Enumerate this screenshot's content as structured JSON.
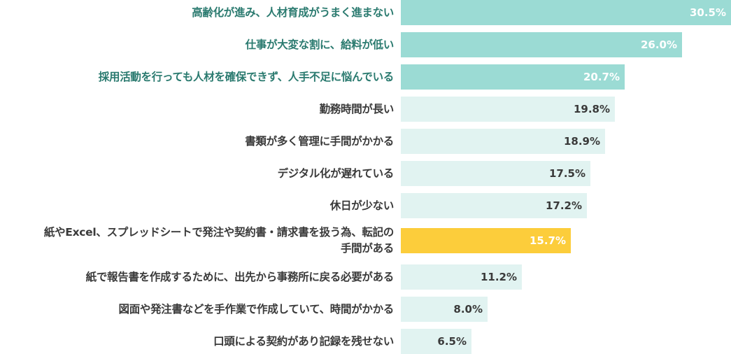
{
  "chart_data": {
    "type": "bar",
    "orientation": "horizontal",
    "xlim": [
      0,
      30.5
    ],
    "unit": "%",
    "categories": [
      "高齢化が進み、人材育成がうまく進まない",
      "仕事が大変な割に、給料が低い",
      "採用活動を行っても人材を確保できず、人手不足に悩んでいる",
      "勤務時間が長い",
      "書類が多く管理に手間がかかる",
      "デジタル化が遅れている",
      "休日が少ない",
      "紙やExcel、スプレッドシートで発注や契約書・請求書を扱う為、転記の\n手間がある",
      "紙で報告書を作成するために、出先から事務所に戻る必要がある",
      "図面や発注書などを手作業で作成していて、時間がかかる",
      "口頭による契約があり記録を残せない"
    ],
    "values": [
      30.5,
      26.0,
      20.7,
      19.8,
      18.9,
      17.5,
      17.2,
      15.7,
      11.2,
      8.0,
      6.5
    ],
    "value_labels": [
      "30.5%",
      "26.0%",
      "20.7%",
      "19.8%",
      "18.9%",
      "17.5%",
      "17.2%",
      "15.7%",
      "11.2%",
      "8.0%",
      "6.5%"
    ],
    "highlight": [
      "top",
      "top",
      "top",
      "none",
      "none",
      "none",
      "none",
      "accent",
      "none",
      "none",
      "none"
    ]
  },
  "colors": {
    "top": "#9bdbd4",
    "none": "#e1f3f1",
    "accent": "#fccd3b",
    "top_label_text": "#2a7a6f",
    "label_text": "#3a3a3a",
    "light_value_text": "#ffffff",
    "dark_value_text": "#3a3a3a"
  }
}
